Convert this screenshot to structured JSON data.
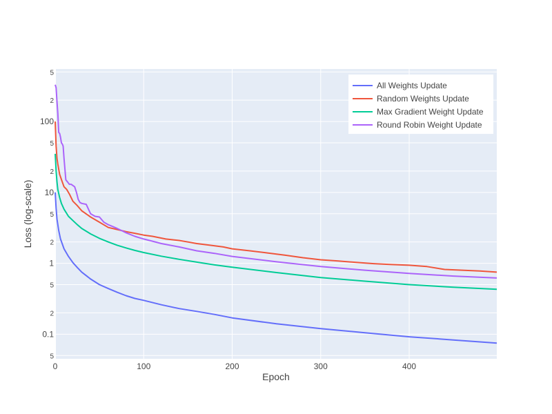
{
  "chart_data": {
    "type": "line",
    "title": "",
    "xlabel": "Epoch",
    "ylabel": "Loss  (log-scale)",
    "xlim": [
      0,
      499
    ],
    "ylim": [
      0.045,
      550
    ],
    "yscale": "log",
    "grid": true,
    "legend_position": "top-right",
    "x_ticks": [
      0,
      100,
      200,
      300,
      400
    ],
    "x_tick_labels": [
      "0",
      "100",
      "200",
      "300",
      "400"
    ],
    "y_major_ticks": [
      0.1,
      1,
      10,
      100
    ],
    "y_major_labels": [
      "0.1",
      "1",
      "10",
      "100"
    ],
    "y_minor_ticks": [
      0.05,
      0.2,
      0.5,
      2,
      5,
      20,
      50,
      200,
      500
    ],
    "y_minor_labels": [
      "5",
      "2",
      "5",
      "2",
      "5",
      "2",
      "5",
      "2",
      "5"
    ],
    "colors": {
      "plot_bg": "#e5ecf6",
      "grid": "#ffffff"
    },
    "series": [
      {
        "name": "All Weights Update",
        "color": "#636efa",
        "x": [
          0,
          1,
          2,
          4,
          6,
          10,
          15,
          20,
          25,
          30,
          40,
          50,
          60,
          70,
          80,
          90,
          100,
          120,
          140,
          160,
          180,
          200,
          250,
          300,
          350,
          400,
          450,
          499
        ],
        "y": [
          10,
          6,
          4.2,
          2.9,
          2.2,
          1.6,
          1.25,
          1.02,
          0.87,
          0.75,
          0.6,
          0.5,
          0.44,
          0.39,
          0.35,
          0.32,
          0.3,
          0.26,
          0.23,
          0.21,
          0.19,
          0.17,
          0.14,
          0.12,
          0.105,
          0.092,
          0.083,
          0.075
        ]
      },
      {
        "name": "Random Weights Update",
        "color": "#ef553b",
        "x": [
          0,
          1,
          2,
          3,
          5,
          8,
          10,
          13,
          16,
          20,
          25,
          30,
          40,
          50,
          60,
          70,
          80,
          90,
          100,
          110,
          125,
          140,
          150,
          160,
          175,
          190,
          200,
          220,
          240,
          260,
          280,
          300,
          320,
          340,
          360,
          380,
          400,
          420,
          440,
          460,
          480,
          499
        ],
        "y": [
          100,
          45,
          30,
          25,
          18,
          14,
          12,
          11,
          9.5,
          7.5,
          6.5,
          5.5,
          4.5,
          3.8,
          3.2,
          3.0,
          2.8,
          2.65,
          2.5,
          2.4,
          2.2,
          2.1,
          2.0,
          1.9,
          1.8,
          1.7,
          1.6,
          1.5,
          1.4,
          1.3,
          1.2,
          1.12,
          1.08,
          1.03,
          0.99,
          0.96,
          0.94,
          0.9,
          0.82,
          0.8,
          0.78,
          0.75
        ]
      },
      {
        "name": "Max Gradient Weight Update",
        "color": "#00cc96",
        "x": [
          0,
          1,
          2,
          3,
          5,
          7,
          10,
          15,
          20,
          25,
          30,
          40,
          50,
          60,
          70,
          80,
          90,
          100,
          120,
          140,
          160,
          180,
          200,
          250,
          300,
          350,
          400,
          450,
          499
        ],
        "y": [
          35,
          20,
          14,
          11,
          8.5,
          7.0,
          5.8,
          4.6,
          4.0,
          3.5,
          3.1,
          2.6,
          2.25,
          2.0,
          1.8,
          1.65,
          1.52,
          1.42,
          1.26,
          1.14,
          1.04,
          0.95,
          0.88,
          0.74,
          0.63,
          0.56,
          0.5,
          0.46,
          0.43
        ]
      },
      {
        "name": "Round Robin Weight Update",
        "color": "#ab63fa",
        "x": [
          0,
          1,
          2,
          3,
          4,
          5,
          6,
          7,
          8,
          9,
          10,
          12,
          14,
          16,
          18,
          20,
          22,
          24,
          26,
          28,
          30,
          35,
          40,
          45,
          50,
          55,
          60,
          65,
          70,
          75,
          80,
          90,
          100,
          110,
          120,
          140,
          160,
          180,
          200,
          250,
          300,
          350,
          400,
          450,
          499
        ],
        "y": [
          330,
          300,
          190,
          130,
          70,
          68,
          60,
          50,
          48,
          45,
          30,
          15,
          14,
          13,
          13,
          12.5,
          12,
          10,
          8.0,
          7.2,
          7.0,
          6.8,
          5.0,
          4.6,
          4.5,
          3.8,
          3.5,
          3.3,
          3.1,
          2.9,
          2.7,
          2.4,
          2.2,
          2.05,
          1.9,
          1.7,
          1.5,
          1.38,
          1.25,
          1.05,
          0.9,
          0.8,
          0.72,
          0.66,
          0.62
        ]
      }
    ]
  }
}
